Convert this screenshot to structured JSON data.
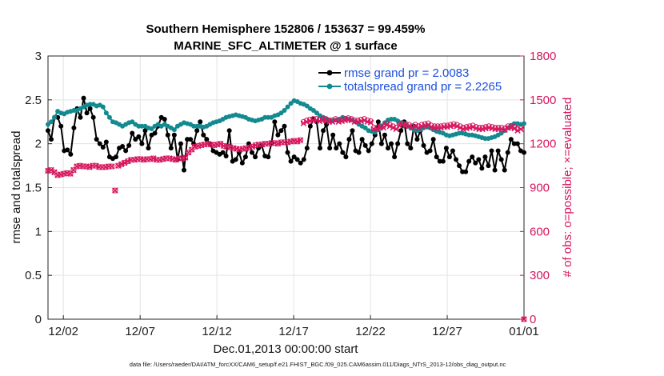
{
  "chart_data": {
    "type": "line",
    "title": "Southern Hemisphere 152806 / 153637 = 99.459%",
    "subtitle": "MARINE_SFC_ALTIMETER @ 1 surface",
    "xlabel": "Dec.01,2013 00:00:00 start",
    "ylabel": "rmse and totalspread",
    "ylabel_right": "# of obs: o=possible; ×=evaluated",
    "footnote": "data file: /Users/raeder/DAI/ATM_forcXX/CAM6_setup/f.e21.FHIST_BGC.f09_025.CAM6assim.011/Diags_NTrS_2013-12/obs_diag_output.nc",
    "xlim": [
      0,
      31
    ],
    "ylim": [
      0,
      3
    ],
    "ylim_right": [
      0,
      1800
    ],
    "x_ticks": [
      1,
      6,
      11,
      16,
      21,
      26,
      31
    ],
    "x_tick_labels": [
      "12/02",
      "12/07",
      "12/12",
      "12/17",
      "12/22",
      "12/27",
      "01/01"
    ],
    "y_ticks": [
      0,
      0.5,
      1,
      1.5,
      2,
      2.5,
      3
    ],
    "y_tick_labels": [
      "0",
      "0.5",
      "1",
      "1.5",
      "2",
      "2.5",
      "3"
    ],
    "y_ticks_right": [
      0,
      300,
      600,
      900,
      1200,
      1500,
      1800
    ],
    "y_tick_labels_right": [
      "0",
      "300",
      "600",
      "900",
      "1200",
      "1500",
      "1800"
    ],
    "grid": true,
    "legend_position": "top-right",
    "series": [
      {
        "name": "rmse grand pr = 2.0083",
        "axis": "left",
        "color": "#000000",
        "marker": "circle",
        "values": [
          2.15,
          2.05,
          2.3,
          2.3,
          2.2,
          1.92,
          1.93,
          1.88,
          2.18,
          2.4,
          2.3,
          2.52,
          2.35,
          2.4,
          2.3,
          2.05,
          2.0,
          1.96,
          2.02,
          1.85,
          1.83,
          1.85,
          1.95,
          1.97,
          1.92,
          1.98,
          2.12,
          2.05,
          2.08,
          2.0,
          2.15,
          1.95,
          2.1,
          2.12,
          2.2,
          2.3,
          2.28,
          2.1,
          1.95,
          2.1,
          1.82,
          2.0,
          1.7,
          2.05,
          2.05,
          2.0,
          2.15,
          2.25,
          2.1,
          2.05,
          2.0,
          1.92,
          1.9,
          1.88,
          1.9,
          1.86,
          2.15,
          1.8,
          1.82,
          1.9,
          1.78,
          1.85,
          2.0,
          1.9,
          1.85,
          1.95,
          1.98,
          1.86,
          1.85,
          2.0,
          2.25,
          2.1,
          2.15,
          2.2,
          1.9,
          1.8,
          1.85,
          1.82,
          1.78,
          1.82,
          1.95,
          2.2,
          2.28,
          2.25,
          1.95,
          2.15,
          2.22,
          1.95,
          2.1,
          1.95,
          2.0,
          1.9,
          1.85,
          2.05,
          2.15,
          1.92,
          1.9,
          2.05,
          1.98,
          1.92,
          2.0,
          2.1,
          2.25,
          2.0,
          2.1,
          1.95,
          2.0,
          1.85,
          2.0,
          2.15,
          2.25,
          2.0,
          1.95,
          2.2,
          2.05,
          2.15,
          1.98,
          1.9,
          1.92,
          2.05,
          1.85,
          1.8,
          1.8,
          1.95,
          1.85,
          1.92,
          1.82,
          1.75,
          1.68,
          1.68,
          1.8,
          1.85,
          1.78,
          1.82,
          1.72,
          1.85,
          1.75,
          1.92,
          1.7,
          1.92,
          1.82,
          1.7,
          1.9,
          2.05,
          2.0,
          2.0,
          1.92,
          1.9
        ]
      },
      {
        "name": "totalspread grand pr = 2.2265",
        "axis": "left",
        "color": "#128a8f",
        "marker": "circle",
        "values": [
          2.22,
          2.25,
          2.3,
          2.37,
          2.35,
          2.34,
          2.36,
          2.37,
          2.38,
          2.38,
          2.4,
          2.42,
          2.44,
          2.45,
          2.45,
          2.43,
          2.44,
          2.42,
          2.35,
          2.3,
          2.25,
          2.24,
          2.22,
          2.2,
          2.22,
          2.24,
          2.25,
          2.22,
          2.2,
          2.2,
          2.2,
          2.18,
          2.17,
          2.2,
          2.22,
          2.2,
          2.22,
          2.2,
          2.18,
          2.16,
          2.2,
          2.22,
          2.24,
          2.23,
          2.22,
          2.2,
          2.2,
          2.2,
          2.19,
          2.2,
          2.22,
          2.24,
          2.25,
          2.26,
          2.28,
          2.3,
          2.31,
          2.32,
          2.33,
          2.32,
          2.31,
          2.3,
          2.28,
          2.27,
          2.26,
          2.27,
          2.28,
          2.3,
          2.3,
          2.3,
          2.32,
          2.33,
          2.35,
          2.38,
          2.42,
          2.46,
          2.49,
          2.48,
          2.46,
          2.45,
          2.43,
          2.4,
          2.38,
          2.35,
          2.32,
          2.3,
          2.28,
          2.27,
          2.26,
          2.27,
          2.28,
          2.3,
          2.29,
          2.28,
          2.27,
          2.25,
          2.22,
          2.2,
          2.18,
          2.15,
          2.14,
          2.13,
          2.16,
          2.2,
          2.24,
          2.27,
          2.28,
          2.28,
          2.26,
          2.24,
          2.22,
          2.2,
          2.18,
          2.16,
          2.15,
          2.16,
          2.18,
          2.19,
          2.18,
          2.16,
          2.14,
          2.13,
          2.12,
          2.1,
          2.09,
          2.1,
          2.11,
          2.12,
          2.12,
          2.11,
          2.1,
          2.1,
          2.09,
          2.08,
          2.07,
          2.06,
          2.06,
          2.07,
          2.08,
          2.1,
          2.12,
          2.15,
          2.18,
          2.21,
          2.23,
          2.23,
          2.22,
          2.23
        ]
      },
      {
        "name": "obs possible",
        "axis": "right",
        "color": "#d6175e",
        "marker": "circle-open",
        "values": [
          1015,
          1020,
          1005,
          985,
          990,
          995,
          1000,
          995,
          1020,
          1045,
          1050,
          1045,
          1045,
          1040,
          1050,
          1050,
          1040,
          1040,
          1040,
          1045,
          1045,
          880,
          1050,
          1060,
          1070,
          1080,
          1090,
          1090,
          1095,
          1095,
          1090,
          1095,
          1095,
          1100,
          1090,
          1090,
          1095,
          1100,
          1100,
          1095,
          1090,
          1100,
          1100,
          1105,
          1140,
          1160,
          1180,
          1185,
          1190,
          1195,
          1200,
          1195,
          1190,
          1195,
          1200,
          1185,
          1180,
          1175,
          1170,
          1165,
          1160,
          1165,
          1170,
          1175,
          1180,
          1190,
          1195,
          1195,
          1200,
          1200,
          1205,
          1205,
          1200,
          1210,
          1210,
          1210,
          1215,
          1220,
          1215,
          1225,
          1350,
          1360,
          1365,
          1370,
          1370,
          1365,
          1370,
          1370,
          1360,
          1360,
          1370,
          1360,
          1365,
          1370,
          1375,
          1370,
          1360,
          1360,
          1365,
          1370,
          1360,
          1355,
          1310,
          1310,
          1320,
          1320,
          1340,
          1330,
          1320,
          1310,
          1335,
          1340,
          1335,
          1330,
          1320,
          1330,
          1320,
          1330,
          1335,
          1340,
          1325,
          1320,
          1320,
          1320,
          1325,
          1325,
          1330,
          1335,
          1330,
          1320,
          1310,
          1315,
          1320,
          1325,
          1315,
          1310,
          1310,
          1315,
          1320,
          1315,
          1310,
          1310,
          1310,
          1305,
          1320,
          1320,
          1315,
          1300,
          1310,
          0
        ]
      },
      {
        "name": "obs evaluated",
        "axis": "right",
        "color": "#d6175e",
        "marker": "cross",
        "values": [
          1015,
          1020,
          1005,
          985,
          990,
          995,
          1000,
          995,
          1020,
          1045,
          1050,
          1045,
          1045,
          1040,
          1050,
          1050,
          1040,
          1040,
          1040,
          1045,
          1045,
          880,
          1050,
          1060,
          1070,
          1080,
          1090,
          1090,
          1095,
          1095,
          1090,
          1095,
          1095,
          1100,
          1090,
          1090,
          1095,
          1100,
          1100,
          1095,
          1090,
          1100,
          1100,
          1105,
          1140,
          1160,
          1180,
          1185,
          1190,
          1195,
          1200,
          1195,
          1190,
          1195,
          1200,
          1185,
          1180,
          1175,
          1170,
          1165,
          1160,
          1165,
          1170,
          1175,
          1180,
          1190,
          1195,
          1195,
          1200,
          1200,
          1205,
          1205,
          1200,
          1210,
          1210,
          1210,
          1215,
          1220,
          1215,
          1225,
          1340,
          1350,
          1355,
          1360,
          1360,
          1355,
          1360,
          1360,
          1350,
          1350,
          1360,
          1350,
          1355,
          1360,
          1365,
          1360,
          1350,
          1350,
          1355,
          1360,
          1350,
          1345,
          1300,
          1300,
          1310,
          1310,
          1330,
          1320,
          1310,
          1300,
          1325,
          1330,
          1325,
          1320,
          1310,
          1320,
          1310,
          1320,
          1325,
          1330,
          1315,
          1310,
          1310,
          1310,
          1315,
          1315,
          1320,
          1325,
          1320,
          1310,
          1300,
          1305,
          1310,
          1315,
          1305,
          1300,
          1300,
          1305,
          1310,
          1305,
          1300,
          1300,
          1300,
          1295,
          1310,
          1310,
          1305,
          1290,
          1300,
          0
        ]
      }
    ]
  }
}
